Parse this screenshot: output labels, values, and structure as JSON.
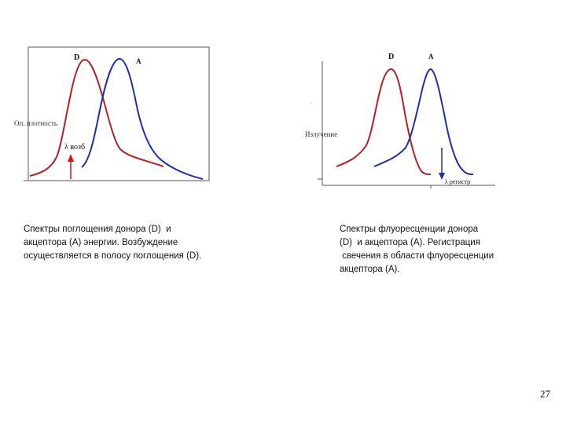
{
  "left_chart": {
    "y_axis_label": "Оп. плотность",
    "donor_label": "D",
    "acceptor_label": "A",
    "excitation_label": "λ возб",
    "colors": {
      "donor": "#b22222",
      "acceptor": "#1f2fa8",
      "arrow": "#dd1111"
    }
  },
  "right_chart": {
    "y_axis_label": "Излучение",
    "donor_label": "D",
    "acceptor_label": "A",
    "registration_label": "λ регистр",
    "colors": {
      "donor": "#b22222",
      "acceptor": "#1f2fa8",
      "arrow": "#1f2fa8"
    }
  },
  "captions": {
    "left": "Спектры поглощения донора (D)  и\nакцептора (А) энергии. Возбуждение\nосуществляется в полосу поглощения (D).",
    "right": "Спектры флуоресценции донора\n(D)  и акцептора (А). Регистрация\n свечения в области флуоресценции\nакцептора (А)."
  },
  "page_number": "27"
}
